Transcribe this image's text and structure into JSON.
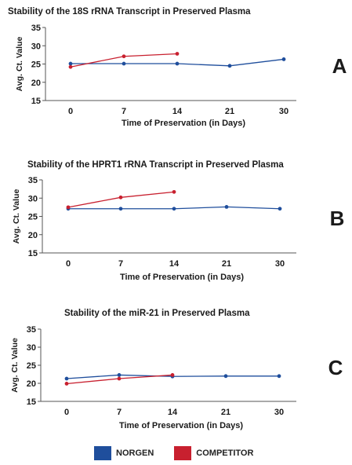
{
  "chart_data": [
    {
      "type": "line",
      "title": "Stability of the 18S rRNA Transcript in Preserved Plasma",
      "panel_label": "A",
      "xlabel": "Time of Preservation (in Days)",
      "ylabel": "Avg. Ct. Value",
      "categories": [
        "0",
        "7",
        "14",
        "21",
        "30"
      ],
      "ylim": [
        15,
        35
      ],
      "yticks": [
        "15",
        "20",
        "25",
        "30",
        "35"
      ],
      "series": [
        {
          "name": "NORGEN",
          "color": "#1f4e9c",
          "values": [
            25.1,
            25.1,
            25.1,
            24.5,
            26.3
          ]
        },
        {
          "name": "COMPETITOR",
          "color": "#c8202f",
          "values": [
            24.2,
            27.1,
            27.8,
            null,
            null
          ]
        }
      ]
    },
    {
      "type": "line",
      "title": "Stability of the HPRT1 rRNA Transcript in Preserved Plasma",
      "panel_label": "B",
      "xlabel": "Time of Preservation (in Days)",
      "ylabel": "Avg. Ct. Value",
      "categories": [
        "0",
        "7",
        "14",
        "21",
        "30"
      ],
      "ylim": [
        15,
        35
      ],
      "yticks": [
        "15",
        "20",
        "25",
        "30",
        "35"
      ],
      "series": [
        {
          "name": "NORGEN",
          "color": "#1f4e9c",
          "values": [
            27.1,
            27.1,
            27.1,
            27.6,
            27.1
          ]
        },
        {
          "name": "COMPETITOR",
          "color": "#c8202f",
          "values": [
            27.5,
            30.2,
            31.7,
            null,
            null
          ]
        }
      ]
    },
    {
      "type": "line",
      "title": "Stability of the miR-21 in Preserved Plasma",
      "panel_label": "C",
      "xlabel": "Time of Preservation (in Days)",
      "ylabel": "Avg. Ct. Value",
      "categories": [
        "0",
        "7",
        "14",
        "21",
        "30"
      ],
      "ylim": [
        15,
        35
      ],
      "yticks": [
        "15",
        "20",
        "25",
        "30",
        "35"
      ],
      "series": [
        {
          "name": "NORGEN",
          "color": "#1f4e9c",
          "values": [
            21.3,
            22.3,
            21.9,
            22.0,
            22.0
          ]
        },
        {
          "name": "COMPETITOR",
          "color": "#c8202f",
          "values": [
            19.9,
            21.3,
            22.3,
            null,
            null
          ]
        }
      ]
    }
  ],
  "legend": [
    {
      "label": "NORGEN",
      "color": "#1f4e9c"
    },
    {
      "label": "COMPETITOR",
      "color": "#c8202f"
    }
  ]
}
